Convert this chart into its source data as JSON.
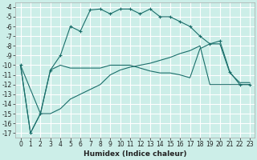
{
  "title": "",
  "xlabel": "Humidex (Indice chaleur)",
  "ylabel": "",
  "bg_color": "#cceee8",
  "grid_color": "#ffffff",
  "line_color": "#1a6e6a",
  "marker": "+",
  "xlim": [
    -0.5,
    23.5
  ],
  "ylim": [
    -17.5,
    -3.5
  ],
  "xticks": [
    0,
    1,
    2,
    3,
    4,
    5,
    6,
    7,
    8,
    9,
    10,
    11,
    12,
    13,
    14,
    15,
    16,
    17,
    18,
    19,
    20,
    21,
    22,
    23
  ],
  "yticks": [
    -17,
    -16,
    -15,
    -14,
    -13,
    -12,
    -11,
    -10,
    -9,
    -8,
    -7,
    -6,
    -5,
    -4
  ],
  "line1_x": [
    0,
    1,
    2,
    3,
    4,
    5,
    6,
    7,
    8,
    9,
    10,
    11,
    12,
    13,
    14,
    15,
    16,
    17,
    18,
    19,
    20,
    21,
    22,
    23
  ],
  "line1_y": [
    -10,
    -17,
    -15,
    -10.5,
    -9,
    -6,
    -6.5,
    -4.3,
    -4.2,
    -4.7,
    -4.2,
    -4.2,
    -4.7,
    -4.2,
    -5,
    -5,
    -5.5,
    -6,
    -7,
    -7.8,
    -7.5,
    -10.7,
    -12,
    -12
  ],
  "line2_x": [
    0,
    2,
    3,
    4,
    5,
    6,
    7,
    8,
    9,
    10,
    11,
    12,
    13,
    14,
    15,
    16,
    17,
    18,
    19,
    20,
    21,
    22,
    23
  ],
  "line2_y": [
    -10,
    -15,
    -10.5,
    -10,
    -10.3,
    -10.3,
    -10.3,
    -10.3,
    -10.0,
    -10.0,
    -10.0,
    -10.3,
    -10.6,
    -10.8,
    -10.8,
    -11.0,
    -11.3,
    -8.3,
    -7.8,
    -7.8,
    -10.8,
    -11.8,
    -11.8
  ],
  "line3_x": [
    0,
    1,
    2,
    3,
    4,
    5,
    6,
    7,
    8,
    9,
    10,
    11,
    12,
    13,
    14,
    15,
    16,
    17,
    18,
    19,
    20,
    21,
    22,
    23
  ],
  "line3_y": [
    -10,
    -17,
    -15,
    -15,
    -14.5,
    -13.5,
    -13,
    -12.5,
    -12,
    -11,
    -10.5,
    -10.2,
    -10,
    -9.8,
    -9.5,
    -9.2,
    -8.8,
    -8.5,
    -8.0,
    -12,
    -12,
    -12,
    -12,
    -12
  ],
  "xlabel_fontsize": 6.5,
  "tick_fontsize": 5.5
}
